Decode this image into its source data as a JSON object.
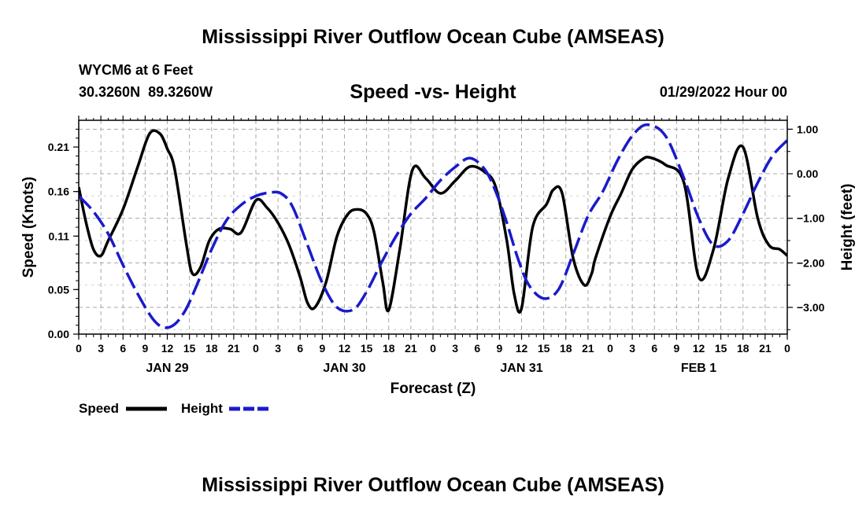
{
  "page_title": "Mississippi River Outflow Ocean Cube (AMSEAS)",
  "footer_title": "Mississippi River Outflow Ocean Cube (AMSEAS)",
  "station": "WYCM6 at 6 Feet",
  "coords": "30.3260N  89.3260W",
  "run": "01/29/2022 Hour 00",
  "colors": {
    "speed": "#000000",
    "height": "#1a1acc",
    "grid": "#a8a8a8"
  },
  "chart_data": {
    "type": "line",
    "title": "Speed -vs- Height",
    "xlabel": "Forecast (Z)",
    "ylabel": "Speed (Knots)",
    "y2label": "Height (feet)",
    "x_range_hours": [
      0,
      96
    ],
    "ylim": [
      0,
      0.24
    ],
    "y2lim": [
      -3.6,
      1.2
    ],
    "y_ticks": [
      0.0,
      0.05,
      0.11,
      0.16,
      0.21
    ],
    "y_tick_labels": [
      "0.00",
      "0.05",
      "0.11",
      "0.16",
      "0.21"
    ],
    "y2_ticks": [
      -3,
      -2,
      -1,
      0,
      1
    ],
    "y2_tick_labels": [
      "−3.00",
      "−2.00",
      "−1.00",
      "0.00",
      "1.00"
    ],
    "x_tick_labels": [
      "0",
      "3",
      "6",
      "9",
      "12",
      "15",
      "18",
      "21",
      "0",
      "3",
      "6",
      "9",
      "12",
      "15",
      "18",
      "21",
      "0",
      "3",
      "6",
      "9",
      "12",
      "15",
      "18",
      "21",
      "0",
      "3",
      "6",
      "9",
      "12",
      "15",
      "18",
      "21",
      "0"
    ],
    "date_labels": [
      {
        "hour": 12,
        "label": "JAN 29"
      },
      {
        "hour": 36,
        "label": "JAN 30"
      },
      {
        "hour": 60,
        "label": "JAN 31"
      },
      {
        "hour": 84,
        "label": "FEB 1"
      }
    ],
    "legend": [
      {
        "name": "Speed",
        "style": "solid"
      },
      {
        "name": "Height",
        "style": "dashed"
      }
    ],
    "series": [
      {
        "name": "Speed",
        "axis": "left",
        "x": [
          0,
          1,
          2,
          3,
          4,
          6,
          8,
          9.6,
          11,
          12,
          13,
          14.6,
          15.4,
          16.5,
          17.7,
          19,
          20.5,
          22,
          24,
          25.5,
          27,
          28.5,
          30,
          31,
          32,
          33.5,
          35,
          36.5,
          37.8,
          39,
          40,
          41.2,
          42,
          43.5,
          45.2,
          47,
          49,
          51,
          53,
          55,
          56.5,
          58,
          59,
          60,
          61.5,
          63.4,
          64.3,
          65.5,
          67,
          68.5,
          69.5,
          70,
          72,
          73.5,
          75,
          76.5,
          77.5,
          79.5,
          82,
          84,
          86,
          88,
          90,
          92,
          93.5,
          95,
          96
        ],
        "values": [
          0.165,
          0.125,
          0.095,
          0.088,
          0.105,
          0.14,
          0.188,
          0.225,
          0.225,
          0.208,
          0.185,
          0.1,
          0.068,
          0.075,
          0.105,
          0.118,
          0.118,
          0.114,
          0.15,
          0.142,
          0.125,
          0.1,
          0.064,
          0.035,
          0.03,
          0.058,
          0.11,
          0.135,
          0.14,
          0.135,
          0.115,
          0.058,
          0.027,
          0.095,
          0.184,
          0.175,
          0.158,
          0.172,
          0.188,
          0.182,
          0.165,
          0.105,
          0.045,
          0.029,
          0.12,
          0.146,
          0.162,
          0.158,
          0.085,
          0.055,
          0.068,
          0.085,
          0.132,
          0.158,
          0.185,
          0.197,
          0.198,
          0.19,
          0.17,
          0.064,
          0.095,
          0.175,
          0.21,
          0.13,
          0.1,
          0.095,
          0.088
        ]
      },
      {
        "name": "Height",
        "axis": "right",
        "x": [
          0,
          2,
          4,
          6,
          8,
          10,
          11.5,
          13,
          14.5,
          16,
          18,
          20,
          22,
          24,
          26,
          27.5,
          29,
          31,
          33,
          35,
          37.2,
          39,
          41,
          43,
          45,
          47,
          49,
          51,
          53,
          55,
          56.5,
          58,
          59.5,
          61,
          63,
          65,
          67,
          69,
          71,
          73,
          75,
          77,
          79.5,
          82,
          84,
          86,
          88,
          90,
          92,
          94,
          96
        ],
        "values": [
          -0.5,
          -0.85,
          -1.35,
          -2.05,
          -2.7,
          -3.25,
          -3.45,
          -3.38,
          -3.05,
          -2.5,
          -1.7,
          -1.05,
          -0.7,
          -0.5,
          -0.42,
          -0.45,
          -0.75,
          -1.6,
          -2.45,
          -3.0,
          -3.05,
          -2.65,
          -2.0,
          -1.4,
          -0.9,
          -0.55,
          -0.15,
          0.15,
          0.35,
          0.1,
          -0.4,
          -1.1,
          -1.9,
          -2.5,
          -2.8,
          -2.6,
          -1.8,
          -0.95,
          -0.4,
          0.3,
          0.85,
          1.1,
          0.85,
          -0.1,
          -1.0,
          -1.6,
          -1.5,
          -0.9,
          -0.2,
          0.4,
          0.75
        ]
      }
    ]
  }
}
